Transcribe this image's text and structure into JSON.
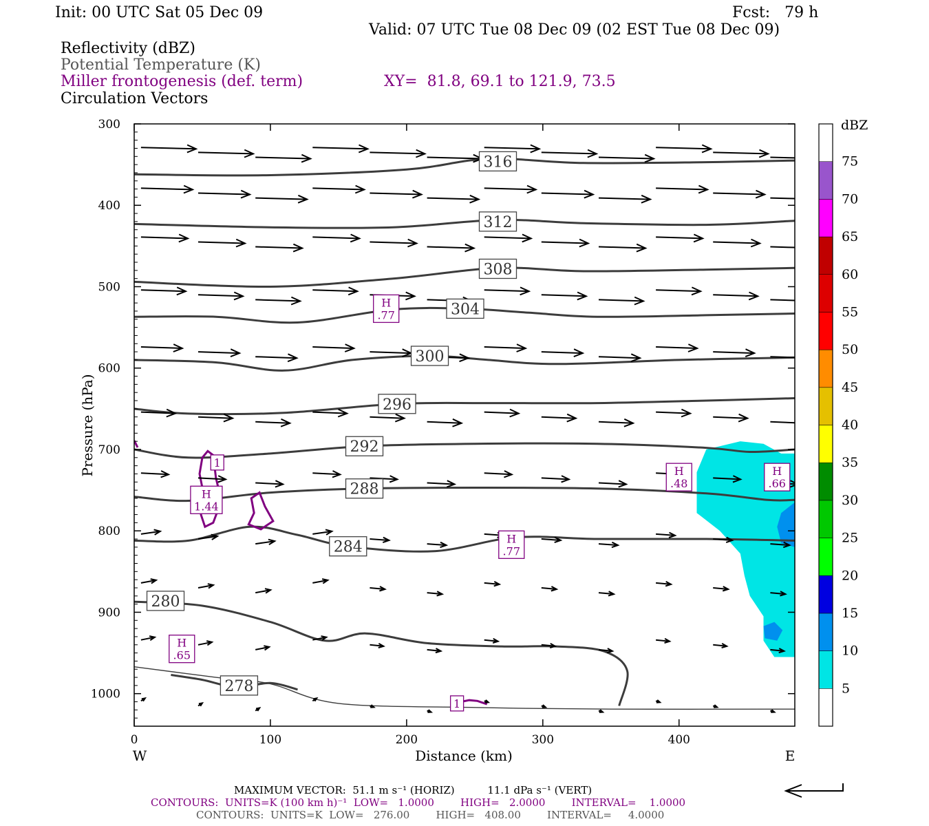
{
  "header": {
    "init": "Init: 00 UTC Sat 05 Dec 09",
    "fcst": "Fcst:   79 h",
    "valid": "Valid: 07 UTC Tue 08 Dec 09 (02 EST Tue 08 Dec 09)"
  },
  "fields": {
    "reflectivity": "Reflectivity (dBZ)",
    "theta": "Potential Temperature (K)",
    "frontogenesis": "Miller frontogenesis (def. term)",
    "xy": "XY=  81.8, 69.1 to 121.9, 73.5",
    "vectors": "Circulation Vectors"
  },
  "footer": {
    "max_vector": "MAXIMUM VECTOR:  51.1 m s⁻¹ (HORIZ)          11.1 dPa s⁻¹ (VERT)",
    "contours_fronto": "CONTOURS:  UNITS=K (100 km h)⁻¹  LOW=   1.0000        HIGH=   2.0000        INTERVAL=    1.0000",
    "contours_theta": "CONTOURS:  UNITS=K  LOW=   276.00        HIGH=   408.00        INTERVAL=     4.0000"
  },
  "colors": {
    "theta": "#3c3c3c",
    "fronto": "#800080",
    "refl_5": "#00e5e5",
    "refl_10": "#0090ee",
    "refl_15": "#0000e0"
  },
  "chart_data": {
    "type": "cross-section",
    "xlabel": "Distance (km)",
    "ylabel": "Pressure (hPa)",
    "xlim": [
      0,
      485
    ],
    "ylim": [
      1040,
      300
    ],
    "x_ticks": [
      "0",
      "100",
      "200",
      "300",
      "400"
    ],
    "y_ticks": [
      "300",
      "400",
      "500",
      "600",
      "700",
      "800",
      "900",
      "1000"
    ],
    "x_tick_values": [
      0,
      100,
      200,
      300,
      400
    ],
    "y_tick_values": [
      300,
      400,
      500,
      600,
      700,
      800,
      900,
      1000
    ],
    "west_label": "W",
    "east_label": "E",
    "colorbar": {
      "unit": "dBZ",
      "labels": [
        "5",
        "10",
        "15",
        "20",
        "25",
        "30",
        "35",
        "40",
        "45",
        "50",
        "55",
        "60",
        "65",
        "70",
        "75"
      ],
      "colors": [
        "#ffffff",
        "#00e5e5",
        "#0090ee",
        "#0000e0",
        "#00ff00",
        "#00c800",
        "#008c00",
        "#ffff00",
        "#e5c000",
        "#ff8c00",
        "#ff0000",
        "#dd0000",
        "#c00000",
        "#ff00ff",
        "#9955cc",
        "#ffffff"
      ]
    },
    "isentropes": [
      {
        "label": "316",
        "label_x": 267,
        "label_p": 346,
        "points": [
          [
            0,
            362
          ],
          [
            100,
            363
          ],
          [
            200,
            356
          ],
          [
            260,
            343
          ],
          [
            330,
            348
          ],
          [
            420,
            347
          ],
          [
            485,
            345
          ]
        ]
      },
      {
        "label": "312",
        "label_x": 267,
        "label_p": 420,
        "points": [
          [
            0,
            423
          ],
          [
            100,
            427
          ],
          [
            190,
            427
          ],
          [
            267,
            418
          ],
          [
            330,
            422
          ],
          [
            420,
            424
          ],
          [
            485,
            419
          ]
        ]
      },
      {
        "label": "308",
        "label_x": 267,
        "label_p": 478,
        "points": [
          [
            0,
            494
          ],
          [
            100,
            500
          ],
          [
            190,
            490
          ],
          [
            267,
            477
          ],
          [
            330,
            481
          ],
          [
            420,
            479
          ],
          [
            485,
            477
          ]
        ]
      },
      {
        "label": "304",
        "label_x": 243,
        "label_p": 527,
        "points": [
          [
            0,
            537
          ],
          [
            60,
            537
          ],
          [
            120,
            544
          ],
          [
            190,
            528
          ],
          [
            243,
            527
          ],
          [
            290,
            532
          ],
          [
            340,
            537
          ],
          [
            420,
            535
          ],
          [
            485,
            533
          ]
        ]
      },
      {
        "label": "300",
        "label_x": 217,
        "label_p": 585,
        "points": [
          [
            0,
            590
          ],
          [
            60,
            593
          ],
          [
            110,
            603
          ],
          [
            160,
            590
          ],
          [
            217,
            585
          ],
          [
            260,
            590
          ],
          [
            310,
            595
          ],
          [
            400,
            590
          ],
          [
            485,
            587
          ]
        ]
      },
      {
        "label": "296",
        "label_x": 193,
        "label_p": 644,
        "points": [
          [
            0,
            650
          ],
          [
            40,
            656
          ],
          [
            110,
            655
          ],
          [
            193,
            644
          ],
          [
            260,
            643
          ],
          [
            340,
            643
          ],
          [
            420,
            640
          ],
          [
            485,
            637
          ]
        ]
      },
      {
        "label": "292",
        "label_x": 169,
        "label_p": 696,
        "points": [
          [
            0,
            700
          ],
          [
            40,
            710
          ],
          [
            100,
            705
          ],
          [
            169,
            696
          ],
          [
            250,
            693
          ],
          [
            340,
            693
          ],
          [
            420,
            698
          ],
          [
            452,
            703
          ],
          [
            485,
            700
          ]
        ]
      },
      {
        "label": "288",
        "label_x": 169,
        "label_p": 748,
        "points": [
          [
            0,
            758
          ],
          [
            40,
            763
          ],
          [
            100,
            753
          ],
          [
            169,
            748
          ],
          [
            250,
            747
          ],
          [
            340,
            748
          ],
          [
            420,
            754
          ],
          [
            465,
            762
          ],
          [
            485,
            762
          ]
        ]
      },
      {
        "label": "284",
        "label_x": 157,
        "label_p": 819,
        "points": [
          [
            0,
            812
          ],
          [
            40,
            812
          ],
          [
            85,
            795
          ],
          [
            120,
            805
          ],
          [
            157,
            819
          ],
          [
            220,
            825
          ],
          [
            280,
            808
          ],
          [
            340,
            810
          ],
          [
            420,
            810
          ],
          [
            485,
            812
          ]
        ]
      },
      {
        "label": "280",
        "label_x": 23,
        "label_p": 886,
        "points": [
          [
            0,
            887
          ],
          [
            50,
            892
          ],
          [
            100,
            912
          ],
          [
            140,
            935
          ],
          [
            170,
            926
          ],
          [
            215,
            938
          ],
          [
            270,
            942
          ],
          [
            310,
            942
          ],
          [
            345,
            948
          ],
          [
            362,
            972
          ],
          [
            356,
            1015
          ]
        ]
      },
      {
        "label": "278",
        "label_x": 77,
        "label_p": 990,
        "points": [
          [
            27,
            977
          ],
          [
            50,
            983
          ],
          [
            75,
            992
          ],
          [
            100,
            987
          ],
          [
            120,
            995
          ]
        ]
      },
      {
        "label": "",
        "label_x": 0,
        "label_p": 0,
        "points": [
          [
            0,
            967
          ],
          [
            60,
            980
          ],
          [
            100,
            988
          ],
          [
            150,
            1012
          ],
          [
            250,
            1017
          ],
          [
            350,
            1019
          ],
          [
            485,
            1019
          ]
        ]
      }
    ],
    "fronto_maxima": [
      {
        "label": "H\n.77",
        "x": 185,
        "p": 527
      },
      {
        "label": "H\n1.44",
        "x": 53,
        "p": 762
      },
      {
        "label": "1",
        "x": 61,
        "p": 716
      },
      {
        "label": "H\n.77",
        "x": 277,
        "p": 817
      },
      {
        "label": "H\n.48",
        "x": 400,
        "p": 734
      },
      {
        "label": "H\n.66",
        "x": 472,
        "p": 734
      },
      {
        "label": "H\n.65",
        "x": 35,
        "p": 945
      },
      {
        "label": "1",
        "x": 237,
        "p": 1012
      }
    ]
  }
}
